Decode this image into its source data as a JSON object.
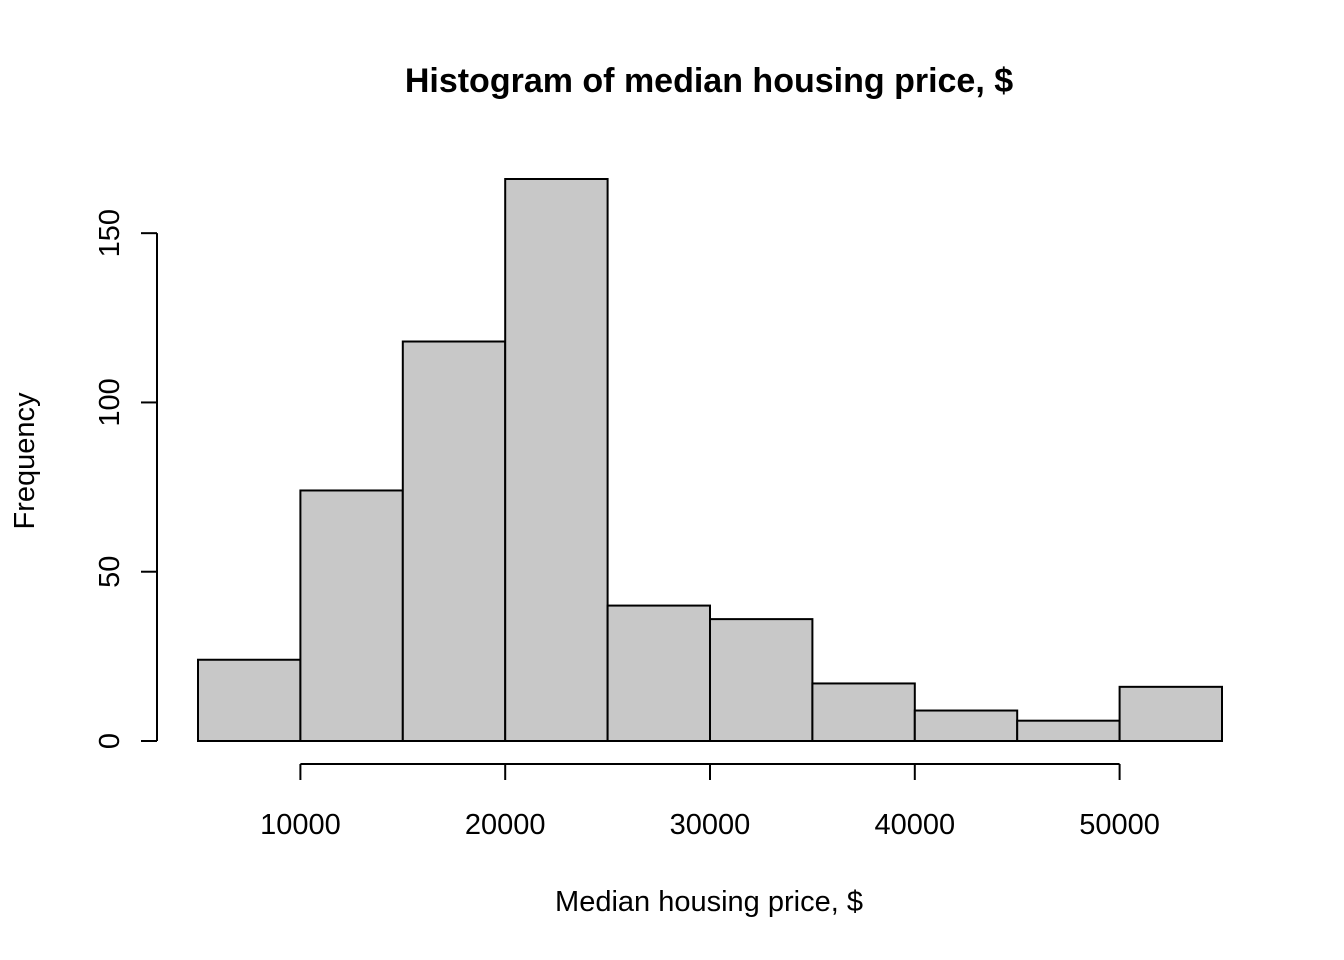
{
  "chart_data": {
    "type": "bar",
    "subtype": "histogram",
    "title": "Histogram of median housing price, $",
    "xlabel": "Median housing price, $",
    "ylabel": "Frequency",
    "bin_edges": [
      5000,
      10000,
      15000,
      20000,
      25000,
      30000,
      35000,
      40000,
      45000,
      50000,
      55000
    ],
    "values": [
      24,
      74,
      118,
      166,
      40,
      36,
      17,
      9,
      6,
      16
    ],
    "x_ticks": [
      10000,
      20000,
      30000,
      40000,
      50000
    ],
    "x_tick_labels": [
      "10000",
      "20000",
      "30000",
      "40000",
      "50000"
    ],
    "y_ticks": [
      0,
      50,
      100,
      150
    ],
    "y_tick_labels": [
      "0",
      "50",
      "100",
      "150"
    ],
    "xlim": [
      5000,
      55000
    ],
    "ylim": [
      0,
      166
    ],
    "grid": false,
    "bar_color": "#c8c8c8",
    "edge_color": "#000000"
  }
}
